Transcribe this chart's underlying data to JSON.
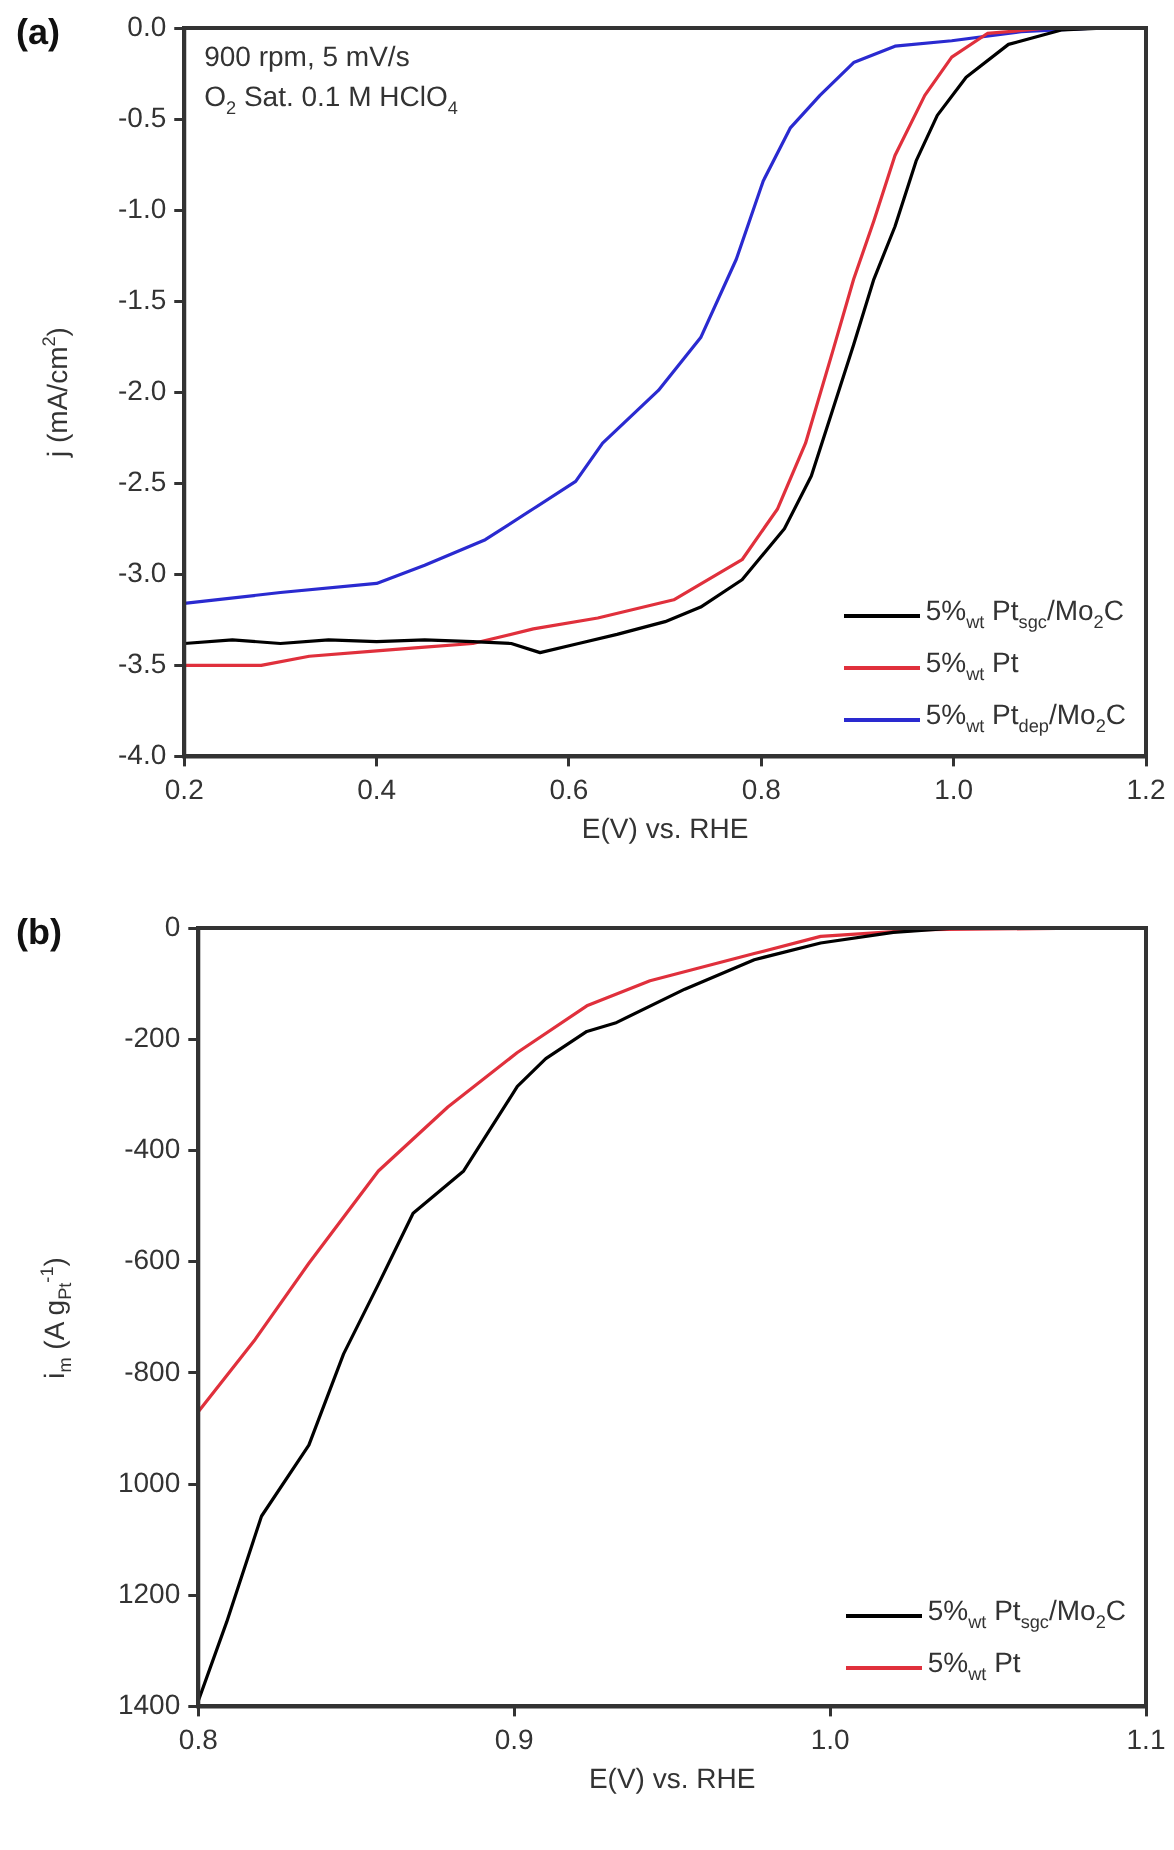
{
  "chart_data": [
    {
      "type": "line",
      "title": "(a)",
      "xlabel": "E(V) vs. RHE",
      "ylabel": "j (mA/cm$^{2}$)",
      "annotations": [
        "900 rpm, 5 mV/s",
        "O$_{2}$ Sat. 0.1 M HClO$_{4}$"
      ],
      "xlim": [
        0.2,
        1.2
      ],
      "xticks": [
        {
          "value": 0.2,
          "label": "0.2"
        },
        {
          "value": 0.4,
          "label": "0.4"
        },
        {
          "value": 0.6,
          "label": "0.6"
        },
        {
          "value": 0.8,
          "label": "0.8"
        },
        {
          "value": 1.0,
          "label": "1.0"
        },
        {
          "value": 1.2,
          "label": "1.2"
        }
      ],
      "ylim": [
        -4.0,
        0.0
      ],
      "yticks": [
        {
          "value": -4.0,
          "label": "-4.0"
        },
        {
          "value": -3.5,
          "label": "-3.5"
        },
        {
          "value": -3.0,
          "label": "-3.0"
        },
        {
          "value": -2.5,
          "label": "-2.5"
        },
        {
          "value": -2.0,
          "label": "-2.0"
        },
        {
          "value": -1.5,
          "label": "-1.5"
        },
        {
          "value": -1.0,
          "label": "-1.0"
        },
        {
          "value": -0.5,
          "label": "-0.5"
        },
        {
          "value": 0.0,
          "label": "0.0"
        }
      ],
      "grid": false,
      "legend": "bottom right",
      "marker": "none",
      "line_style": "solid",
      "series": [
        {
          "name": "5%$_{wt}$ Pt$_{sgc}$/Mo$_{2}$C",
          "color": "#000000",
          "x": [
            0.2,
            0.25,
            0.3,
            0.35,
            0.4,
            0.45,
            0.5,
            0.54,
            0.57,
            0.61,
            0.65,
            0.7,
            0.737,
            0.78,
            0.824,
            0.852,
            0.874,
            0.896,
            0.917,
            0.939,
            0.961,
            0.983,
            1.013,
            1.057,
            1.113,
            1.16
          ],
          "values": [
            -3.38,
            -3.36,
            -3.38,
            -3.36,
            -3.37,
            -3.36,
            -3.37,
            -3.38,
            -3.43,
            -3.38,
            -3.33,
            -3.26,
            -3.18,
            -3.03,
            -2.75,
            -2.46,
            -2.1,
            -1.74,
            -1.38,
            -1.09,
            -0.73,
            -0.48,
            -0.27,
            -0.09,
            -0.01,
            0.0
          ]
        },
        {
          "name": "5%$_{wt}$ Pt",
          "color": "#e0303c",
          "x": [
            0.2,
            0.28,
            0.33,
            0.4,
            0.45,
            0.5,
            0.563,
            0.63,
            0.709,
            0.78,
            0.817,
            0.846,
            0.874,
            0.896,
            0.917,
            0.939,
            0.97,
            0.998,
            1.035,
            1.1
          ],
          "values": [
            -3.5,
            -3.5,
            -3.45,
            -3.42,
            -3.4,
            -3.38,
            -3.3,
            -3.24,
            -3.14,
            -2.92,
            -2.64,
            -2.28,
            -1.78,
            -1.38,
            -1.06,
            -0.7,
            -0.37,
            -0.16,
            -0.03,
            0.0
          ]
        },
        {
          "name": "5%$_{wt}$ Pt$_{dep}$/Mo$_{2}$C",
          "color": "#2a2ad0",
          "x": [
            0.2,
            0.3,
            0.4,
            0.45,
            0.513,
            0.563,
            0.607,
            0.635,
            0.693,
            0.737,
            0.774,
            0.802,
            0.83,
            0.861,
            0.896,
            0.939,
            0.998,
            1.07,
            1.15
          ],
          "values": [
            -3.16,
            -3.1,
            -3.05,
            -2.95,
            -2.81,
            -2.64,
            -2.49,
            -2.28,
            -1.99,
            -1.7,
            -1.27,
            -0.84,
            -0.55,
            -0.37,
            -0.19,
            -0.1,
            -0.07,
            -0.02,
            0.0
          ]
        }
      ]
    },
    {
      "type": "line",
      "title": "(b)",
      "xlabel": "E(V) vs. RHE",
      "ylabel": "i$_{m}$ (A g$_{Pt}$$^{-1}$)",
      "xlim": [
        0.8,
        1.1
      ],
      "xticks": [
        {
          "value": 0.8,
          "label": "0.8"
        },
        {
          "value": 0.9,
          "label": "0.9"
        },
        {
          "value": 1.0,
          "label": "1.0"
        },
        {
          "value": 1.1,
          "label": "1.1"
        }
      ],
      "ylim": [
        -1400,
        0
      ],
      "yticks": [
        {
          "value": -1400,
          "label": "1400"
        },
        {
          "value": -1200,
          "label": "1200"
        },
        {
          "value": -1000,
          "label": "1000"
        },
        -800,
        -600,
        -400,
        -200,
        0
      ],
      "grid": false,
      "legend": "bottom right",
      "marker": "none",
      "line_style": "solid",
      "series": [
        {
          "name": "5%$_{wt}$ Pt$_{sgc}$/Mo$_{2}$C",
          "color": "#000000",
          "x": [
            0.8,
            0.809,
            0.82,
            0.835,
            0.846,
            0.857,
            0.868,
            0.884,
            0.901,
            0.91,
            0.923,
            0.932,
            0.954,
            0.976,
            0.997,
            1.02,
            1.04,
            1.09
          ],
          "values": [
            -1390,
            -1248,
            -1058,
            -930,
            -766,
            -641,
            -513,
            -437,
            -285,
            -235,
            -186,
            -171,
            -110,
            -57,
            -27,
            -8,
            0,
            0
          ]
        },
        {
          "name": "5%$_{wt}$ Pt",
          "color": "#e0303c",
          "x": [
            0.8,
            0.818,
            0.835,
            0.857,
            0.879,
            0.901,
            0.923,
            0.943,
            0.976,
            0.997,
            1.03,
            1.085
          ],
          "values": [
            -870,
            -740,
            -603,
            -437,
            -322,
            -224,
            -140,
            -95,
            -46,
            -15,
            -3,
            0
          ]
        }
      ]
    }
  ]
}
